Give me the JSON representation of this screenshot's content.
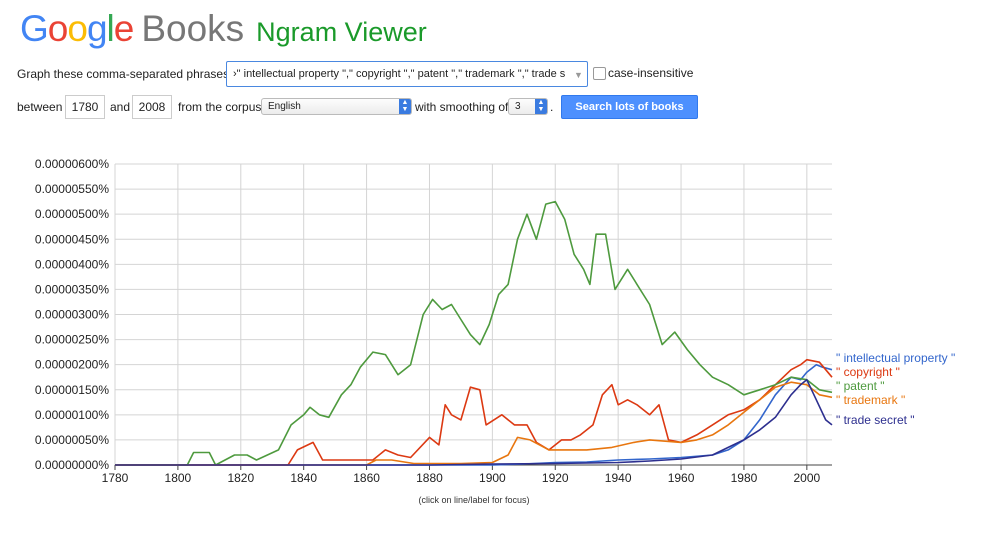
{
  "header": {
    "logo_letters": [
      {
        "ch": "G",
        "color": "#4285f4"
      },
      {
        "ch": "o",
        "color": "#ea4335"
      },
      {
        "ch": "o",
        "color": "#fbbc05"
      },
      {
        "ch": "g",
        "color": "#4285f4"
      },
      {
        "ch": "l",
        "color": "#34a853"
      },
      {
        "ch": "e",
        "color": "#ea4335"
      }
    ],
    "books": "Books",
    "app_title": "Ngram Viewer"
  },
  "form": {
    "phrases_label": "Graph these comma-separated phrases:",
    "phrases_value": "›\" intellectual property \",\" copyright \",\" patent \",\" trademark \",\" trade s",
    "case_insensitive_label": "case-insensitive",
    "between_label": "between",
    "start_year": "1780",
    "and_label": "and",
    "end_year": "2008",
    "corpus_label": "from the corpus",
    "corpus_value": "English",
    "smoothing_label": "with smoothing of",
    "smoothing_value": "3",
    "smoothing_suffix": ".",
    "search_button": "Search lots of books"
  },
  "chart_note": "(click on line/label for focus)",
  "chart_data": {
    "type": "line",
    "xlim": [
      1780,
      2008
    ],
    "ylim": [
      0,
      6e-06
    ],
    "x_ticks": [
      1780,
      1800,
      1820,
      1840,
      1860,
      1880,
      1900,
      1920,
      1940,
      1960,
      1980,
      2000
    ],
    "y_ticks": [
      {
        "v": 0,
        "label": "0.00000000%"
      },
      {
        "v": 5e-07,
        "label": "0.00000050%"
      },
      {
        "v": 1e-06,
        "label": "0.00000100%"
      },
      {
        "v": 1.5e-06,
        "label": "0.00000150%"
      },
      {
        "v": 2e-06,
        "label": "0.00000200%"
      },
      {
        "v": 2.5e-06,
        "label": "0.00000250%"
      },
      {
        "v": 3e-06,
        "label": "0.00000300%"
      },
      {
        "v": 3.5e-06,
        "label": "0.00000350%"
      },
      {
        "v": 4e-06,
        "label": "0.00000400%"
      },
      {
        "v": 4.5e-06,
        "label": "0.00000450%"
      },
      {
        "v": 5e-06,
        "label": "0.00000500%"
      },
      {
        "v": 5.5e-06,
        "label": "0.00000550%"
      },
      {
        "v": 6e-06,
        "label": "0.00000600%"
      }
    ],
    "grid": true,
    "legend_placement": "right, at line ends",
    "series": [
      {
        "name": "\" intellectual property \"",
        "color": "#3366cc",
        "points": [
          [
            1780,
            0
          ],
          [
            1860,
            0
          ],
          [
            1880,
            0
          ],
          [
            1900,
            0
          ],
          [
            1910,
            2e-08
          ],
          [
            1920,
            5e-08
          ],
          [
            1930,
            6e-08
          ],
          [
            1940,
            1e-07
          ],
          [
            1950,
            1.2e-07
          ],
          [
            1960,
            1.5e-07
          ],
          [
            1970,
            2e-07
          ],
          [
            1975,
            3e-07
          ],
          [
            1980,
            5e-07
          ],
          [
            1985,
            9e-07
          ],
          [
            1990,
            1.4e-06
          ],
          [
            1995,
            1.75e-06
          ],
          [
            1998,
            1.7e-06
          ],
          [
            2000,
            1.85e-06
          ],
          [
            2003,
            2e-06
          ],
          [
            2005,
            1.95e-06
          ],
          [
            2008,
            1.9e-06
          ]
        ]
      },
      {
        "name": "\" copyright \"",
        "color": "#dc3912",
        "points": [
          [
            1780,
            0
          ],
          [
            1835,
            0
          ],
          [
            1838,
            3e-07
          ],
          [
            1843,
            4.5e-07
          ],
          [
            1846,
            1e-07
          ],
          [
            1855,
            1e-07
          ],
          [
            1862,
            1e-07
          ],
          [
            1866,
            3e-07
          ],
          [
            1870,
            2e-07
          ],
          [
            1874,
            1.5e-07
          ],
          [
            1880,
            5.5e-07
          ],
          [
            1883,
            4e-07
          ],
          [
            1885,
            1.2e-06
          ],
          [
            1887,
            1e-06
          ],
          [
            1890,
            9e-07
          ],
          [
            1893,
            1.55e-06
          ],
          [
            1896,
            1.5e-06
          ],
          [
            1898,
            8e-07
          ],
          [
            1903,
            1e-06
          ],
          [
            1907,
            8e-07
          ],
          [
            1911,
            8e-07
          ],
          [
            1914,
            4.5e-07
          ],
          [
            1918,
            3e-07
          ],
          [
            1922,
            5e-07
          ],
          [
            1925,
            5e-07
          ],
          [
            1928,
            6e-07
          ],
          [
            1932,
            8e-07
          ],
          [
            1935,
            1.4e-06
          ],
          [
            1938,
            1.6e-06
          ],
          [
            1940,
            1.2e-06
          ],
          [
            1943,
            1.3e-06
          ],
          [
            1946,
            1.2e-06
          ],
          [
            1950,
            1e-06
          ],
          [
            1953,
            1.2e-06
          ],
          [
            1956,
            5e-07
          ],
          [
            1960,
            4.5e-07
          ],
          [
            1965,
            6e-07
          ],
          [
            1970,
            8e-07
          ],
          [
            1975,
            1e-06
          ],
          [
            1980,
            1.1e-06
          ],
          [
            1985,
            1.3e-06
          ],
          [
            1990,
            1.6e-06
          ],
          [
            1995,
            1.9e-06
          ],
          [
            1998,
            2e-06
          ],
          [
            2000,
            2.1e-06
          ],
          [
            2004,
            2.05e-06
          ],
          [
            2008,
            1.75e-06
          ]
        ]
      },
      {
        "name": "\" patent \"",
        "color": "#4e9a3e",
        "points": [
          [
            1780,
            0
          ],
          [
            1803,
            0
          ],
          [
            1805,
            2.5e-07
          ],
          [
            1810,
            2.5e-07
          ],
          [
            1812,
            0
          ],
          [
            1818,
            2e-07
          ],
          [
            1822,
            2e-07
          ],
          [
            1825,
            1e-07
          ],
          [
            1832,
            3e-07
          ],
          [
            1836,
            8e-07
          ],
          [
            1840,
            1e-06
          ],
          [
            1842,
            1.15e-06
          ],
          [
            1845,
            1e-06
          ],
          [
            1848,
            9.5e-07
          ],
          [
            1852,
            1.4e-06
          ],
          [
            1855,
            1.6e-06
          ],
          [
            1858,
            1.95e-06
          ],
          [
            1862,
            2.25e-06
          ],
          [
            1866,
            2.2e-06
          ],
          [
            1870,
            1.8e-06
          ],
          [
            1874,
            2e-06
          ],
          [
            1876,
            2.5e-06
          ],
          [
            1878,
            3e-06
          ],
          [
            1881,
            3.3e-06
          ],
          [
            1884,
            3.1e-06
          ],
          [
            1887,
            3.2e-06
          ],
          [
            1890,
            2.9e-06
          ],
          [
            1893,
            2.6e-06
          ],
          [
            1896,
            2.4e-06
          ],
          [
            1899,
            2.8e-06
          ],
          [
            1902,
            3.4e-06
          ],
          [
            1905,
            3.6e-06
          ],
          [
            1908,
            4.5e-06
          ],
          [
            1911,
            5e-06
          ],
          [
            1914,
            4.5e-06
          ],
          [
            1917,
            5.2e-06
          ],
          [
            1920,
            5.25e-06
          ],
          [
            1923,
            4.9e-06
          ],
          [
            1926,
            4.2e-06
          ],
          [
            1929,
            3.9e-06
          ],
          [
            1931,
            3.6e-06
          ],
          [
            1933,
            4.6e-06
          ],
          [
            1936,
            4.6e-06
          ],
          [
            1939,
            3.5e-06
          ],
          [
            1943,
            3.9e-06
          ],
          [
            1946,
            3.6e-06
          ],
          [
            1950,
            3.2e-06
          ],
          [
            1954,
            2.4e-06
          ],
          [
            1958,
            2.65e-06
          ],
          [
            1962,
            2.3e-06
          ],
          [
            1966,
            2e-06
          ],
          [
            1970,
            1.75e-06
          ],
          [
            1975,
            1.6e-06
          ],
          [
            1980,
            1.4e-06
          ],
          [
            1985,
            1.5e-06
          ],
          [
            1990,
            1.6e-06
          ],
          [
            1995,
            1.75e-06
          ],
          [
            2000,
            1.7e-06
          ],
          [
            2004,
            1.5e-06
          ],
          [
            2008,
            1.45e-06
          ]
        ]
      },
      {
        "name": "\" trademark \"",
        "color": "#e8760f",
        "points": [
          [
            1780,
            0
          ],
          [
            1860,
            0
          ],
          [
            1863,
            1e-07
          ],
          [
            1868,
            1e-07
          ],
          [
            1875,
            3e-08
          ],
          [
            1890,
            3e-08
          ],
          [
            1900,
            5e-08
          ],
          [
            1905,
            2e-07
          ],
          [
            1908,
            5.5e-07
          ],
          [
            1912,
            5e-07
          ],
          [
            1918,
            3e-07
          ],
          [
            1925,
            3e-07
          ],
          [
            1930,
            3e-07
          ],
          [
            1938,
            3.5e-07
          ],
          [
            1945,
            4.5e-07
          ],
          [
            1950,
            5e-07
          ],
          [
            1960,
            4.5e-07
          ],
          [
            1965,
            5e-07
          ],
          [
            1970,
            6e-07
          ],
          [
            1975,
            8e-07
          ],
          [
            1980,
            1.05e-06
          ],
          [
            1985,
            1.3e-06
          ],
          [
            1990,
            1.55e-06
          ],
          [
            1995,
            1.65e-06
          ],
          [
            2000,
            1.6e-06
          ],
          [
            2004,
            1.4e-06
          ],
          [
            2008,
            1.35e-06
          ]
        ]
      },
      {
        "name": "\" trade secret \"",
        "color": "#2d2f8f",
        "points": [
          [
            1780,
            0
          ],
          [
            1880,
            0
          ],
          [
            1900,
            2e-08
          ],
          [
            1920,
            3e-08
          ],
          [
            1940,
            5e-08
          ],
          [
            1950,
            8e-08
          ],
          [
            1960,
            1.2e-07
          ],
          [
            1970,
            2e-07
          ],
          [
            1975,
            3.5e-07
          ],
          [
            1980,
            5e-07
          ],
          [
            1985,
            7e-07
          ],
          [
            1990,
            9.5e-07
          ],
          [
            1995,
            1.4e-06
          ],
          [
            1998,
            1.6e-06
          ],
          [
            2000,
            1.7e-06
          ],
          [
            2003,
            1.3e-06
          ],
          [
            2006,
            9e-07
          ],
          [
            2008,
            8e-07
          ]
        ]
      }
    ]
  }
}
